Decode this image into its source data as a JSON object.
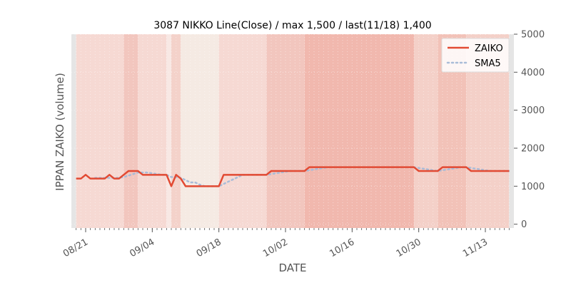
{
  "chart_data": {
    "type": "line",
    "title": "3087 NIKKO Line(Close) / max 1,500 / last(11/18) 1,400",
    "xlabel": "DATE",
    "ylabel": "IPPAN ZAIKO (volume)",
    "ylim": [
      -100,
      5000
    ],
    "yticks": [
      "0",
      "1000",
      "2000",
      "3000",
      "4000",
      "5000"
    ],
    "ytick_values": [
      0,
      1000,
      2000,
      3000,
      4000,
      5000
    ],
    "xticks": [
      {
        "label": "08/21",
        "date": "2023-08-21"
      },
      {
        "label": "09/04",
        "date": "2023-09-04"
      },
      {
        "label": "09/18",
        "date": "2023-09-18"
      },
      {
        "label": "10/02",
        "date": "2023-10-02"
      },
      {
        "label": "10/16",
        "date": "2023-10-16"
      },
      {
        "label": "10/30",
        "date": "2023-10-30"
      },
      {
        "label": "11/13",
        "date": "2023-11-13"
      }
    ],
    "xlim": [
      "2023-08-18",
      "2023-11-19"
    ],
    "legend_position": "top-right",
    "grid": true,
    "series": [
      {
        "name": "ZAIKO",
        "color": "#E24A33",
        "style": "solid",
        "points": [
          [
            "2023-08-19",
            1200
          ],
          [
            "2023-08-20",
            1200
          ],
          [
            "2023-08-21",
            1300
          ],
          [
            "2023-08-22",
            1200
          ],
          [
            "2023-08-23",
            1200
          ],
          [
            "2023-08-24",
            1200
          ],
          [
            "2023-08-25",
            1200
          ],
          [
            "2023-08-26",
            1300
          ],
          [
            "2023-08-27",
            1200
          ],
          [
            "2023-08-28",
            1200
          ],
          [
            "2023-08-29",
            1300
          ],
          [
            "2023-08-30",
            1400
          ],
          [
            "2023-08-31",
            1400
          ],
          [
            "2023-09-01",
            1400
          ],
          [
            "2023-09-02",
            1300
          ],
          [
            "2023-09-03",
            1300
          ],
          [
            "2023-09-04",
            1300
          ],
          [
            "2023-09-05",
            1300
          ],
          [
            "2023-09-06",
            1300
          ],
          [
            "2023-09-07",
            1300
          ],
          [
            "2023-09-08",
            1000
          ],
          [
            "2023-09-09",
            1300
          ],
          [
            "2023-09-10",
            1200
          ],
          [
            "2023-09-11",
            1000
          ],
          [
            "2023-09-12",
            1000
          ],
          [
            "2023-09-13",
            1000
          ],
          [
            "2023-09-14",
            1000
          ],
          [
            "2023-09-15",
            1000
          ],
          [
            "2023-09-16",
            1000
          ],
          [
            "2023-09-17",
            1000
          ],
          [
            "2023-09-18",
            1000
          ],
          [
            "2023-09-19",
            1300
          ],
          [
            "2023-09-20",
            1300
          ],
          [
            "2023-09-21",
            1300
          ],
          [
            "2023-09-22",
            1300
          ],
          [
            "2023-09-23",
            1300
          ],
          [
            "2023-09-24",
            1300
          ],
          [
            "2023-09-25",
            1300
          ],
          [
            "2023-09-26",
            1300
          ],
          [
            "2023-09-27",
            1300
          ],
          [
            "2023-09-28",
            1300
          ],
          [
            "2023-09-29",
            1400
          ],
          [
            "2023-09-30",
            1400
          ],
          [
            "2023-10-01",
            1400
          ],
          [
            "2023-10-02",
            1400
          ],
          [
            "2023-10-03",
            1400
          ],
          [
            "2023-10-04",
            1400
          ],
          [
            "2023-10-05",
            1400
          ],
          [
            "2023-10-06",
            1400
          ],
          [
            "2023-10-07",
            1500
          ],
          [
            "2023-10-08",
            1500
          ],
          [
            "2023-10-09",
            1500
          ],
          [
            "2023-10-10",
            1500
          ],
          [
            "2023-10-11",
            1500
          ],
          [
            "2023-10-12",
            1500
          ],
          [
            "2023-10-13",
            1500
          ],
          [
            "2023-10-14",
            1500
          ],
          [
            "2023-10-15",
            1500
          ],
          [
            "2023-10-16",
            1500
          ],
          [
            "2023-10-17",
            1500
          ],
          [
            "2023-10-18",
            1500
          ],
          [
            "2023-10-19",
            1500
          ],
          [
            "2023-10-20",
            1500
          ],
          [
            "2023-10-21",
            1500
          ],
          [
            "2023-10-22",
            1500
          ],
          [
            "2023-10-23",
            1500
          ],
          [
            "2023-10-24",
            1500
          ],
          [
            "2023-10-25",
            1500
          ],
          [
            "2023-10-26",
            1500
          ],
          [
            "2023-10-27",
            1500
          ],
          [
            "2023-10-28",
            1500
          ],
          [
            "2023-10-29",
            1500
          ],
          [
            "2023-10-30",
            1400
          ],
          [
            "2023-10-31",
            1400
          ],
          [
            "2023-11-01",
            1400
          ],
          [
            "2023-11-02",
            1400
          ],
          [
            "2023-11-03",
            1400
          ],
          [
            "2023-11-04",
            1500
          ],
          [
            "2023-11-05",
            1500
          ],
          [
            "2023-11-06",
            1500
          ],
          [
            "2023-11-07",
            1500
          ],
          [
            "2023-11-08",
            1500
          ],
          [
            "2023-11-09",
            1500
          ],
          [
            "2023-11-10",
            1400
          ],
          [
            "2023-11-11",
            1400
          ],
          [
            "2023-11-12",
            1400
          ],
          [
            "2023-11-13",
            1400
          ],
          [
            "2023-11-14",
            1400
          ],
          [
            "2023-11-15",
            1400
          ],
          [
            "2023-11-16",
            1400
          ],
          [
            "2023-11-17",
            1400
          ],
          [
            "2023-11-18",
            1400
          ]
        ]
      },
      {
        "name": "SMA5",
        "color": "#A9BCD8",
        "style": "dotted",
        "points": [
          [
            "2023-08-23",
            1220
          ],
          [
            "2023-08-24",
            1220
          ],
          [
            "2023-08-25",
            1220
          ],
          [
            "2023-08-26",
            1220
          ],
          [
            "2023-08-27",
            1220
          ],
          [
            "2023-08-28",
            1220
          ],
          [
            "2023-08-29",
            1240
          ],
          [
            "2023-08-30",
            1280
          ],
          [
            "2023-08-31",
            1320
          ],
          [
            "2023-09-01",
            1360
          ],
          [
            "2023-09-02",
            1360
          ],
          [
            "2023-09-03",
            1360
          ],
          [
            "2023-09-04",
            1340
          ],
          [
            "2023-09-05",
            1320
          ],
          [
            "2023-09-06",
            1300
          ],
          [
            "2023-09-07",
            1300
          ],
          [
            "2023-09-08",
            1240
          ],
          [
            "2023-09-09",
            1240
          ],
          [
            "2023-09-10",
            1220
          ],
          [
            "2023-09-11",
            1160
          ],
          [
            "2023-09-12",
            1100
          ],
          [
            "2023-09-13",
            1100
          ],
          [
            "2023-09-14",
            1040
          ],
          [
            "2023-09-15",
            1000
          ],
          [
            "2023-09-16",
            1000
          ],
          [
            "2023-09-17",
            1000
          ],
          [
            "2023-09-18",
            1000
          ],
          [
            "2023-09-19",
            1060
          ],
          [
            "2023-09-20",
            1120
          ],
          [
            "2023-09-21",
            1180
          ],
          [
            "2023-09-22",
            1240
          ],
          [
            "2023-09-23",
            1300
          ],
          [
            "2023-09-24",
            1300
          ],
          [
            "2023-09-25",
            1300
          ],
          [
            "2023-09-26",
            1300
          ],
          [
            "2023-09-27",
            1300
          ],
          [
            "2023-09-28",
            1300
          ],
          [
            "2023-09-29",
            1320
          ],
          [
            "2023-09-30",
            1340
          ],
          [
            "2023-10-01",
            1360
          ],
          [
            "2023-10-02",
            1380
          ],
          [
            "2023-10-03",
            1400
          ],
          [
            "2023-10-04",
            1400
          ],
          [
            "2023-10-05",
            1400
          ],
          [
            "2023-10-06",
            1400
          ],
          [
            "2023-10-07",
            1420
          ],
          [
            "2023-10-08",
            1440
          ],
          [
            "2023-10-09",
            1460
          ],
          [
            "2023-10-10",
            1480
          ],
          [
            "2023-10-11",
            1500
          ],
          [
            "2023-10-12",
            1500
          ],
          [
            "2023-10-13",
            1500
          ],
          [
            "2023-10-14",
            1500
          ],
          [
            "2023-10-15",
            1500
          ],
          [
            "2023-10-16",
            1500
          ],
          [
            "2023-10-17",
            1500
          ],
          [
            "2023-10-18",
            1500
          ],
          [
            "2023-10-19",
            1500
          ],
          [
            "2023-10-20",
            1500
          ],
          [
            "2023-10-21",
            1500
          ],
          [
            "2023-10-22",
            1500
          ],
          [
            "2023-10-23",
            1500
          ],
          [
            "2023-10-24",
            1500
          ],
          [
            "2023-10-25",
            1500
          ],
          [
            "2023-10-26",
            1500
          ],
          [
            "2023-10-27",
            1500
          ],
          [
            "2023-10-28",
            1500
          ],
          [
            "2023-10-29",
            1500
          ],
          [
            "2023-10-30",
            1480
          ],
          [
            "2023-10-31",
            1460
          ],
          [
            "2023-11-01",
            1440
          ],
          [
            "2023-11-02",
            1420
          ],
          [
            "2023-11-03",
            1400
          ],
          [
            "2023-11-04",
            1420
          ],
          [
            "2023-11-05",
            1440
          ],
          [
            "2023-11-06",
            1460
          ],
          [
            "2023-11-07",
            1480
          ],
          [
            "2023-11-08",
            1500
          ],
          [
            "2023-11-09",
            1500
          ],
          [
            "2023-11-10",
            1480
          ],
          [
            "2023-11-11",
            1460
          ],
          [
            "2023-11-12",
            1440
          ],
          [
            "2023-11-13",
            1420
          ],
          [
            "2023-11-14",
            1400
          ],
          [
            "2023-11-15",
            1400
          ],
          [
            "2023-11-16",
            1400
          ],
          [
            "2023-11-17",
            1400
          ],
          [
            "2023-11-18",
            1400
          ]
        ]
      }
    ],
    "background_bands": [
      {
        "start": "2023-08-18",
        "end": "2023-08-19",
        "color": "#E5E5E5"
      },
      {
        "start": "2023-08-19",
        "end": "2023-08-29",
        "color": "#F6D9D3"
      },
      {
        "start": "2023-08-29",
        "end": "2023-09-01",
        "color": "#F2C6BE"
      },
      {
        "start": "2023-09-01",
        "end": "2023-09-07",
        "color": "#F6D9D3"
      },
      {
        "start": "2023-09-07",
        "end": "2023-09-08",
        "color": "#F8E8E4"
      },
      {
        "start": "2023-09-08",
        "end": "2023-09-10",
        "color": "#F4D2CA"
      },
      {
        "start": "2023-09-10",
        "end": "2023-09-18",
        "color": "#F5EAE3"
      },
      {
        "start": "2023-09-18",
        "end": "2023-09-28",
        "color": "#F6D9D3"
      },
      {
        "start": "2023-09-28",
        "end": "2023-10-06",
        "color": "#F2C6BE"
      },
      {
        "start": "2023-10-06",
        "end": "2023-10-29",
        "color": "#F1B8AE"
      },
      {
        "start": "2023-10-29",
        "end": "2023-11-03",
        "color": "#F4D0C8"
      },
      {
        "start": "2023-11-03",
        "end": "2023-11-09",
        "color": "#F2C2B8"
      },
      {
        "start": "2023-11-09",
        "end": "2023-11-18",
        "color": "#F4D0C8"
      },
      {
        "start": "2023-11-18",
        "end": "2023-11-19",
        "color": "#E5E5E5"
      }
    ]
  }
}
